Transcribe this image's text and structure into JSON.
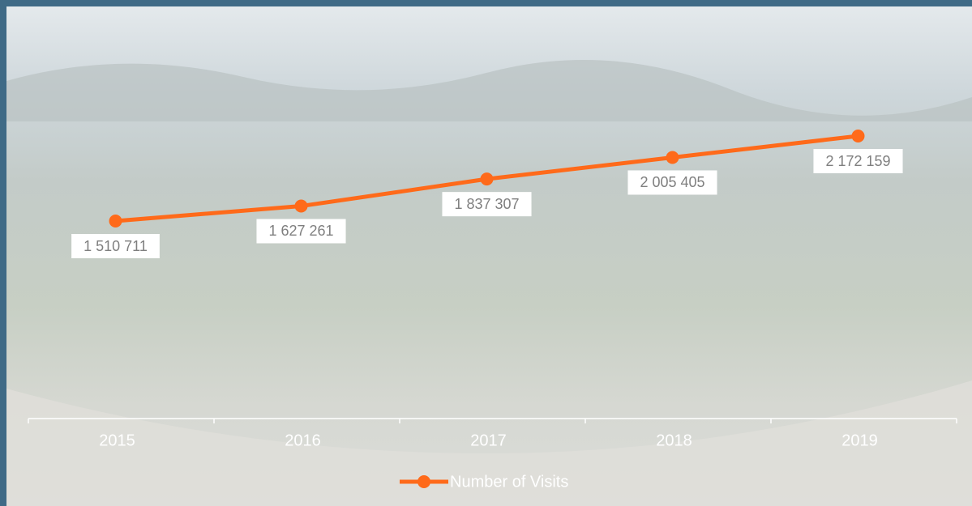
{
  "chart_data": {
    "type": "line",
    "categories": [
      "2015",
      "2016",
      "2017",
      "2018",
      "2019"
    ],
    "series": [
      {
        "name": "Number of Visits",
        "color": "#ff6a1a",
        "values": [
          1510711,
          1627261,
          1837307,
          2005405,
          2172159
        ],
        "value_labels": [
          "1 510 711",
          "1 627 261",
          "1 837 307",
          "2 005 405",
          "2 172 159"
        ]
      }
    ],
    "legend": "bottom"
  }
}
